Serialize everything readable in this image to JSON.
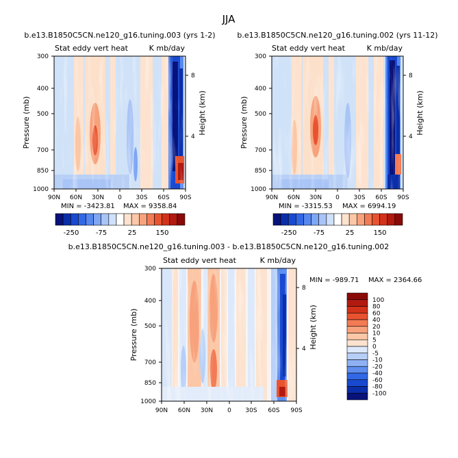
{
  "figure": {
    "season": "JJA"
  },
  "chart_data": [
    {
      "type": "heatmap",
      "case": "b.e13.B1850C5CN.ne120_g16.tuning.003 (yrs 1-2)",
      "variable": "Stat eddy vert heat",
      "units": "K mb/day",
      "xlabel": "",
      "ylabel": "Pressure (mb)",
      "ylabel_right": "Height (km)",
      "x_ticks": [
        "90N",
        "60N",
        "30N",
        "0",
        "30S",
        "60S",
        "90S"
      ],
      "y_ticks": [
        "300",
        "400",
        "500",
        "700",
        "850",
        "1000"
      ],
      "y_right_ticks": [
        "8",
        "4"
      ],
      "ylim_mb": [
        300,
        1000
      ],
      "min_label": "MIN = -3423.81",
      "max_label": "MAX = 9358.84",
      "min": -3423.81,
      "max": 9358.84,
      "colorbar": {
        "orientation": "horizontal",
        "levels": [
          -300,
          -250,
          -200,
          -150,
          -100,
          -75,
          -50,
          -25,
          0,
          25,
          50,
          75,
          100,
          150,
          200,
          250,
          300
        ],
        "tick_labels": [
          "-250",
          "-75",
          "25",
          "150"
        ],
        "colors": [
          "#08127a",
          "#0b2ea8",
          "#1849d0",
          "#3268e6",
          "#5688ef",
          "#7fa6f3",
          "#a9c4f6",
          "#cfe0fa",
          "#ffffff",
          "#fde3cf",
          "#fbc7a7",
          "#f7a27c",
          "#f27b55",
          "#e8532f",
          "#d3321a",
          "#b21a10",
          "#8a0a07"
        ]
      }
    },
    {
      "type": "heatmap",
      "case": "b.e13.B1850C5CN.ne120_g16.tuning.002 (yrs 11-12)",
      "variable": "Stat eddy vert heat",
      "units": "K mb/day",
      "xlabel": "",
      "ylabel": "Pressure (mb)",
      "ylabel_right": "Height (km)",
      "x_ticks": [
        "90N",
        "60N",
        "30N",
        "0",
        "30S",
        "60S",
        "90S"
      ],
      "y_ticks": [
        "300",
        "400",
        "500",
        "700",
        "850",
        "1000"
      ],
      "y_right_ticks": [
        "8",
        "4"
      ],
      "ylim_mb": [
        300,
        1000
      ],
      "min_label": "MIN = -3315.53",
      "max_label": "MAX = 6994.19",
      "min": -3315.53,
      "max": 6994.19,
      "colorbar": {
        "orientation": "horizontal",
        "levels": [
          -300,
          -250,
          -200,
          -150,
          -100,
          -75,
          -50,
          -25,
          0,
          25,
          50,
          75,
          100,
          150,
          200,
          250,
          300
        ],
        "tick_labels": [
          "-250",
          "-75",
          "25",
          "150"
        ],
        "colors": [
          "#08127a",
          "#0b2ea8",
          "#1849d0",
          "#3268e6",
          "#5688ef",
          "#7fa6f3",
          "#a9c4f6",
          "#cfe0fa",
          "#ffffff",
          "#fde3cf",
          "#fbc7a7",
          "#f7a27c",
          "#f27b55",
          "#e8532f",
          "#d3321a",
          "#b21a10",
          "#8a0a07"
        ]
      }
    },
    {
      "type": "heatmap",
      "case": "b.e13.B1850C5CN.ne120_g16.tuning.003 - b.e13.B1850C5CN.ne120_g16.tuning.002",
      "variable": "Stat eddy vert heat",
      "units": "K mb/day",
      "xlabel": "",
      "ylabel": "Pressure (mb)",
      "ylabel_right": "Height (km)",
      "x_ticks": [
        "90N",
        "60N",
        "30N",
        "0",
        "30S",
        "60S",
        "90S"
      ],
      "y_ticks": [
        "300",
        "400",
        "500",
        "700",
        "850",
        "1000"
      ],
      "y_right_ticks": [
        "8",
        "4"
      ],
      "ylim_mb": [
        300,
        1000
      ],
      "min_label": "MIN = -989.71",
      "max_label": "MAX = 2364.66",
      "min": -989.71,
      "max": 2364.66,
      "colorbar": {
        "orientation": "vertical",
        "levels": [
          100,
          80,
          60,
          40,
          20,
          10,
          5,
          0,
          -5,
          -10,
          -20,
          -40,
          -60,
          -80,
          -100
        ],
        "tick_labels": [
          "100",
          "80",
          "60",
          "40",
          "20",
          "10",
          "5",
          "0",
          "-5",
          "-10",
          "-20",
          "-40",
          "-60",
          "-80",
          "-100"
        ],
        "colors": [
          "#8a0a07",
          "#b21a10",
          "#d3321a",
          "#e8532f",
          "#f27b55",
          "#f7a27c",
          "#fbc7a7",
          "#fde3cf",
          "#dde9fb",
          "#b6cff8",
          "#8fb1f3",
          "#5f8eee",
          "#3268e6",
          "#1849d0",
          "#0b2ea8",
          "#08127a"
        ]
      }
    }
  ]
}
